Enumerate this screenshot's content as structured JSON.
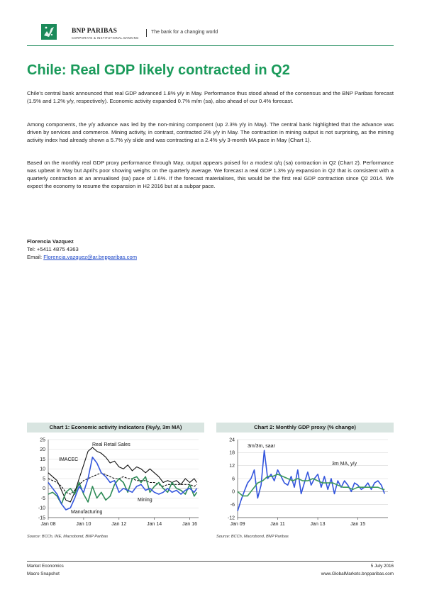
{
  "header": {
    "brand_name": "BNP PARIBAS",
    "brand_sub": "CORPORATE & INSTITUTIONAL BANKING",
    "tagline": "The bank for a changing world",
    "brand_color": "#1b8a5a"
  },
  "title": "Chile: Real GDP likely contracted in Q2",
  "paragraphs": [
    "Chile’s central bank announced that real GDP advanced 1.8% y/y in May. Performance thus stood ahead of the consensus and the BNP Paribas forecast (1.5% and 1.2% y/y, respectively). Economic activity expanded 0.7% m/m (sa), also ahead of our 0.4% forecast.",
    "Among components, the y/y advance was led by the non-mining component (up 2.3% y/y in May). The central bank highlighted that the advance was driven by services and commerce. Mining activity, in contrast, contracted 2% y/y in May. The contraction in mining output is not surprising, as the mining activity index had already shown a 5.7% y/y slide and was contracting at a 2.4% y/y 3-month MA pace in May (Chart 1).",
    "Based on the monthly real GDP proxy performance through May, output appears poised for a modest q/q (sa) contraction in Q2 (Chart 2). Performance was upbeat in May but April’s poor showing weighs on the quarterly average. We forecast a real GDP 1.3% y/y expansion in Q2 that is consistent with a quarterly contraction at an annualised (sa) pace of 1.6%. If the forecast materialises, this would be the first real GDP contraction since Q2 2014. We expect the economy to resume the expansion in H2 2016 but at a subpar pace."
  ],
  "author": {
    "name": "Florencia Vazquez",
    "tel": "Tel: +5411 4875 4363",
    "email_label": "Email: ",
    "email": "Florencia.vazquez@ar.bnpparibas.com"
  },
  "chart_data": [
    {
      "type": "line",
      "title": "Chart 1: Economic activity indicators (%y/y, 3m MA)",
      "xlabel": "",
      "ylabel": "",
      "x_ticks": [
        "Jan 08",
        "Jan 10",
        "Jan 12",
        "Jan 14",
        "Jan 16"
      ],
      "y_ticks": [
        25,
        20,
        15,
        10,
        5,
        0,
        -5,
        -10,
        -15
      ],
      "ylim": [
        -15,
        25
      ],
      "xlim": [
        2008.0,
        2016.5
      ],
      "grid": true,
      "source": "Source: BCCh, INE, Macrobond, BNP Paribas",
      "series": [
        {
          "name": "Real Retail Sales",
          "color": "#111111",
          "dash": false,
          "x": [
            2008.0,
            2008.25,
            2008.5,
            2008.75,
            2009.0,
            2009.25,
            2009.5,
            2009.75,
            2010.0,
            2010.25,
            2010.5,
            2010.75,
            2011.0,
            2011.25,
            2011.5,
            2011.75,
            2012.0,
            2012.25,
            2012.5,
            2012.75,
            2013.0,
            2013.25,
            2013.5,
            2013.75,
            2014.0,
            2014.25,
            2014.5,
            2014.75,
            2015.0,
            2015.25,
            2015.5,
            2015.75,
            2016.0,
            2016.25,
            2016.4
          ],
          "values": [
            8,
            6,
            4,
            -1,
            -6,
            -7,
            -2,
            5,
            12,
            19,
            21,
            19,
            18,
            16,
            13,
            14,
            11,
            10,
            12,
            9,
            11,
            10,
            8,
            10,
            8,
            6,
            3,
            4,
            3,
            4,
            2,
            5,
            3,
            5,
            3
          ]
        },
        {
          "name": "IMACEC",
          "color": "#111111",
          "dash": true,
          "x": [
            2008.0,
            2008.25,
            2008.5,
            2008.75,
            2009.0,
            2009.25,
            2009.5,
            2009.75,
            2010.0,
            2010.25,
            2010.5,
            2010.75,
            2011.0,
            2011.25,
            2011.5,
            2011.75,
            2012.0,
            2012.25,
            2012.5,
            2012.75,
            2013.0,
            2013.25,
            2013.5,
            2013.75,
            2014.0,
            2014.25,
            2014.5,
            2014.75,
            2015.0,
            2015.25,
            2015.5,
            2015.75,
            2016.0,
            2016.25,
            2016.4
          ],
          "values": [
            5,
            4,
            3,
            1,
            -2,
            -3,
            -1,
            2,
            4,
            5,
            6,
            7,
            8,
            7,
            6,
            5,
            5,
            6,
            5,
            5,
            4,
            4,
            4,
            3,
            3,
            2,
            1,
            2,
            2,
            2,
            2,
            2,
            2,
            1,
            2
          ]
        },
        {
          "name": "Mining",
          "color": "#2e8b57",
          "dash": false,
          "x": [
            2008.0,
            2008.25,
            2008.5,
            2008.75,
            2009.0,
            2009.25,
            2009.5,
            2009.75,
            2010.0,
            2010.25,
            2010.5,
            2010.75,
            2011.0,
            2011.25,
            2011.5,
            2011.75,
            2012.0,
            2012.25,
            2012.5,
            2012.75,
            2013.0,
            2013.25,
            2013.5,
            2013.75,
            2014.0,
            2014.25,
            2014.5,
            2014.75,
            2015.0,
            2015.25,
            2015.5,
            2015.75,
            2016.0,
            2016.25,
            2016.4
          ],
          "values": [
            -3,
            -2,
            -4,
            -8,
            -2,
            0,
            -3,
            3,
            -3,
            -7,
            1,
            -5,
            -2,
            -6,
            -4,
            2,
            5,
            3,
            -2,
            5,
            6,
            3,
            6,
            -2,
            1,
            3,
            0,
            -2,
            3,
            0,
            -1,
            -3,
            2,
            -4,
            -2
          ]
        },
        {
          "name": "Manufacturing",
          "color": "#3355dd",
          "dash": false,
          "x": [
            2008.0,
            2008.25,
            2008.5,
            2008.75,
            2009.0,
            2009.25,
            2009.5,
            2009.75,
            2010.0,
            2010.25,
            2010.5,
            2010.75,
            2011.0,
            2011.25,
            2011.5,
            2011.75,
            2012.0,
            2012.25,
            2012.5,
            2012.75,
            2013.0,
            2013.25,
            2013.5,
            2013.75,
            2014.0,
            2014.25,
            2014.5,
            2014.75,
            2015.0,
            2015.25,
            2015.5,
            2015.75,
            2016.0,
            2016.25,
            2016.4
          ],
          "values": [
            3,
            0,
            -3,
            -8,
            -11,
            -10,
            -5,
            1,
            -2,
            5,
            16,
            13,
            8,
            6,
            3,
            4,
            -2,
            0,
            -1,
            -2,
            1,
            2,
            -1,
            0,
            -2,
            -3,
            -2,
            0,
            -2,
            -1,
            -3,
            -1,
            0,
            -2,
            0
          ]
        }
      ],
      "labels": [
        "IMACEC",
        "Real Retail Sales",
        "Mining",
        "Manufacturing"
      ]
    },
    {
      "type": "line",
      "title": "Chart 2: Monthly GDP proxy (% change)",
      "xlabel": "",
      "ylabel": "",
      "x_ticks": [
        "Jan 09",
        "Jan 11",
        "Jan 13",
        "Jan 15"
      ],
      "y_ticks": [
        24,
        18,
        12,
        6,
        0,
        -6,
        -12
      ],
      "ylim": [
        -12,
        24
      ],
      "xlim": [
        2009.0,
        2016.5
      ],
      "grid": true,
      "source": "Source: BCCh, Macrobond, BNP Paribas",
      "series": [
        {
          "name": "3m/3m, saar",
          "color": "#3355dd",
          "x": [
            2009.0,
            2009.17,
            2009.33,
            2009.5,
            2009.67,
            2009.83,
            2010.0,
            2010.17,
            2010.33,
            2010.5,
            2010.67,
            2010.83,
            2011.0,
            2011.17,
            2011.33,
            2011.5,
            2011.67,
            2011.83,
            2012.0,
            2012.17,
            2012.33,
            2012.5,
            2012.67,
            2012.83,
            2013.0,
            2013.17,
            2013.33,
            2013.5,
            2013.67,
            2013.83,
            2014.0,
            2014.17,
            2014.33,
            2014.5,
            2014.67,
            2014.83,
            2015.0,
            2015.17,
            2015.33,
            2015.5,
            2015.67,
            2015.83,
            2016.0,
            2016.17,
            2016.33
          ],
          "values": [
            -9,
            -4,
            0,
            4,
            6,
            10,
            -3,
            3,
            19,
            6,
            8,
            5,
            10,
            7,
            4,
            3,
            7,
            2,
            10,
            -1,
            4,
            9,
            3,
            6,
            8,
            2,
            7,
            1,
            6,
            -1,
            5,
            2,
            5,
            3,
            0,
            4,
            3,
            1,
            2,
            4,
            1,
            4,
            5,
            3,
            -1
          ]
        },
        {
          "name": "3m MA, y/y",
          "color": "#3d9a5c",
          "x": [
            2009.0,
            2009.25,
            2009.5,
            2009.75,
            2010.0,
            2010.25,
            2010.5,
            2010.75,
            2011.0,
            2011.25,
            2011.5,
            2011.75,
            2012.0,
            2012.25,
            2012.5,
            2012.75,
            2013.0,
            2013.25,
            2013.5,
            2013.75,
            2014.0,
            2014.25,
            2014.5,
            2014.75,
            2015.0,
            2015.25,
            2015.5,
            2015.75,
            2016.0,
            2016.25,
            2016.33
          ],
          "values": [
            0,
            -2,
            -2,
            1,
            4,
            5,
            7,
            7,
            8,
            7,
            6,
            5,
            6,
            5,
            5,
            6,
            5,
            4,
            4,
            4,
            3,
            2,
            2,
            1,
            2,
            2,
            2,
            2,
            2,
            1,
            1
          ]
        }
      ],
      "labels": [
        "3m/3m, saar",
        "3m MA, y/y"
      ]
    }
  ],
  "footer": {
    "left1": "Market Economics",
    "left2": "Macro Snapshot",
    "right1": "5 July 2016",
    "right2": "www.GlobalMarkets.bnpparibas.com"
  }
}
